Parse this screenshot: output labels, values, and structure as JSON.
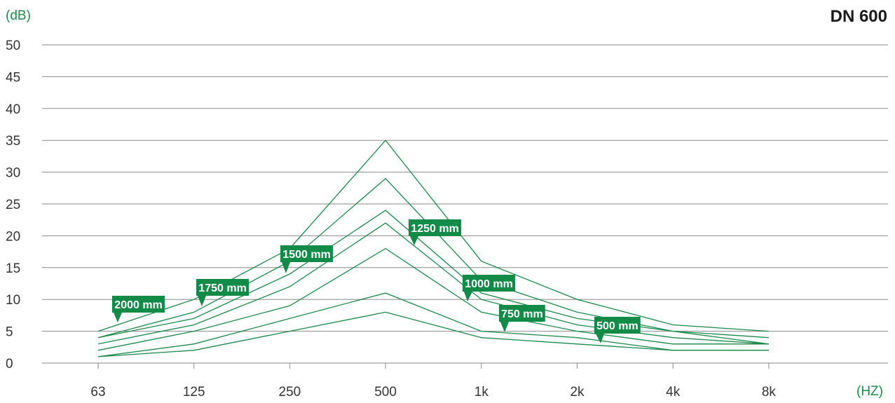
{
  "chart_data": {
    "type": "line",
    "title": "DN 600",
    "ylabel": "(dB)",
    "xlabel": "(HZ)",
    "categories": [
      "63",
      "125",
      "250",
      "500",
      "1k",
      "2k",
      "4k",
      "8k"
    ],
    "ylim": [
      0,
      50
    ],
    "yticks": [
      0,
      5,
      10,
      15,
      20,
      25,
      30,
      35,
      40,
      45,
      50
    ],
    "grid": true,
    "series": [
      {
        "name": "2000 mm",
        "values": [
          5,
          10,
          18,
          35,
          16,
          10,
          6,
          5
        ]
      },
      {
        "name": "1750 mm",
        "values": [
          4,
          8,
          16,
          29,
          13,
          8,
          5,
          4
        ]
      },
      {
        "name": "1500 mm",
        "values": [
          4,
          7,
          14,
          24,
          11,
          7,
          5,
          3
        ]
      },
      {
        "name": "1250 mm",
        "values": [
          3,
          6,
          12,
          22,
          10,
          6,
          4,
          3
        ]
      },
      {
        "name": "1000 mm",
        "values": [
          2,
          5,
          9,
          18,
          8,
          5,
          3,
          3
        ]
      },
      {
        "name": "750 mm",
        "values": [
          1,
          3,
          7,
          11,
          5,
          4,
          2,
          2
        ]
      },
      {
        "name": "500 mm",
        "values": [
          1,
          2,
          5,
          8,
          4,
          3,
          2,
          2
        ]
      }
    ],
    "colors": {
      "line": "#1a8a4a",
      "label_bg": "#128a48",
      "grid": "#8a8a8a",
      "unit_text": "#1a8a4a"
    }
  }
}
